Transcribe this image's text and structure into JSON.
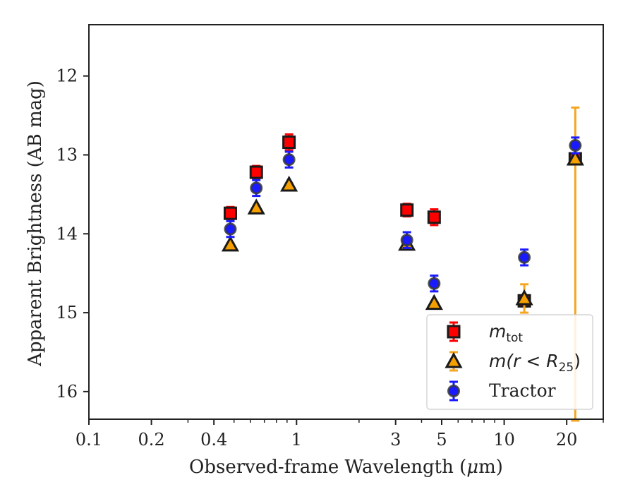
{
  "chart_data": {
    "type": "scatter",
    "xlabel_main": "Observed-frame Wavelength (",
    "xlabel_mu": "μ",
    "xlabel_end": "m)",
    "ylabel": "Apparent Brightness (AB mag)",
    "x_scale": "log",
    "xlim": [
      0.1,
      30
    ],
    "ylim": [
      16.35,
      11.35
    ],
    "y_inverted": true,
    "x_ticks": [
      {
        "value": 0.1,
        "label": "0.1"
      },
      {
        "value": 0.2,
        "label": "0.2"
      },
      {
        "value": 0.4,
        "label": "0.4"
      },
      {
        "value": 1,
        "label": "1"
      },
      {
        "value": 3,
        "label": "3"
      },
      {
        "value": 5,
        "label": "5"
      },
      {
        "value": 10,
        "label": "10"
      },
      {
        "value": 20,
        "label": "20"
      }
    ],
    "x_minor_ticks": [
      0.3,
      0.5,
      0.6,
      0.7,
      0.8,
      0.9,
      2,
      4,
      6,
      7,
      8,
      9,
      30
    ],
    "y_ticks": [
      {
        "value": 12,
        "label": "12"
      },
      {
        "value": 13,
        "label": "13"
      },
      {
        "value": 14,
        "label": "14"
      },
      {
        "value": 15,
        "label": "15"
      },
      {
        "value": 16,
        "label": "16"
      }
    ],
    "legend_position": "lower-right",
    "series": [
      {
        "key": "mtot",
        "legend_main": "m",
        "legend_sub": "tot",
        "marker": "square",
        "color": "#ff0000",
        "edge": "#1a1a1a",
        "error_color": "#ff0000",
        "points": [
          {
            "x": 0.48,
            "y": 13.74,
            "err": 0.08
          },
          {
            "x": 0.64,
            "y": 13.22,
            "err": 0.08
          },
          {
            "x": 0.92,
            "y": 12.84,
            "err": 0.1
          },
          {
            "x": 3.4,
            "y": 13.7,
            "err": 0.08
          },
          {
            "x": 4.6,
            "y": 13.79,
            "err": 0.1
          },
          {
            "x": 12.5,
            "y": 14.85,
            "err": 0.07
          },
          {
            "x": 22.0,
            "y": 13.05,
            "err": 0.05
          }
        ]
      },
      {
        "key": "mr25",
        "legend_main": "m",
        "legend_open": "(r < R",
        "legend_sub": "25",
        "legend_close": ")",
        "marker": "triangle",
        "color": "#f5a000",
        "edge": "#1a1a1a",
        "error_color": "#f5a623",
        "points": [
          {
            "x": 0.48,
            "y": 14.14,
            "err": 0.02
          },
          {
            "x": 0.64,
            "y": 13.67,
            "err": 0.02
          },
          {
            "x": 0.92,
            "y": 13.38,
            "err": 0.02
          },
          {
            "x": 3.4,
            "y": 14.13,
            "err": 0.02
          },
          {
            "x": 4.6,
            "y": 14.88,
            "err": 0.02
          },
          {
            "x": 12.5,
            "y": 14.82,
            "err": 0.18
          },
          {
            "x": 22.0,
            "y": 13.05,
            "err_up": 0.65,
            "err_down": 3.5
          }
        ]
      },
      {
        "key": "tractor",
        "legend_main": "Tractor",
        "marker": "circle",
        "color": "#1a1aff",
        "edge": "#3a3a3a",
        "error_color": "#1a1aff",
        "points": [
          {
            "x": 0.48,
            "y": 13.94,
            "err": 0.1
          },
          {
            "x": 0.64,
            "y": 13.42,
            "err": 0.1
          },
          {
            "x": 0.92,
            "y": 13.06,
            "err": 0.1
          },
          {
            "x": 3.4,
            "y": 14.08,
            "err": 0.1
          },
          {
            "x": 4.6,
            "y": 14.63,
            "err": 0.1
          },
          {
            "x": 12.5,
            "y": 14.3,
            "err": 0.1
          },
          {
            "x": 22.0,
            "y": 12.88,
            "err": 0.1
          }
        ]
      }
    ]
  }
}
